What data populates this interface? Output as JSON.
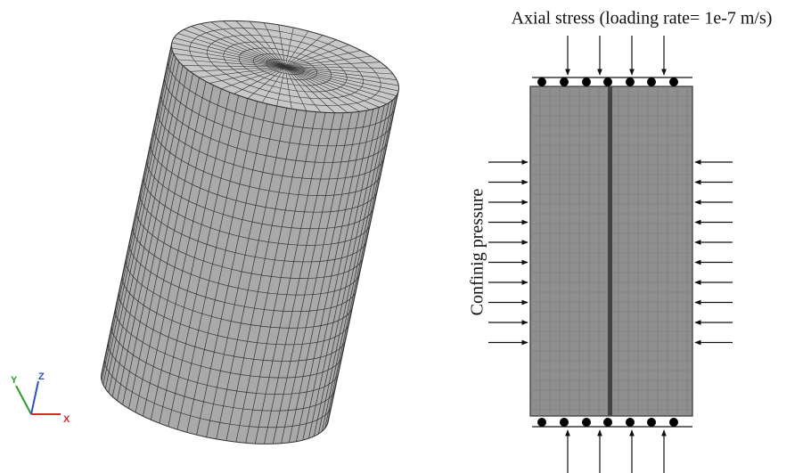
{
  "labels": {
    "axial_stress": "Axial stress (loading rate= 1e-7 m/s)",
    "confining_pressure": "Confinig pressure"
  },
  "axes": {
    "x": "X",
    "y": "Y",
    "z": "Z"
  }
}
